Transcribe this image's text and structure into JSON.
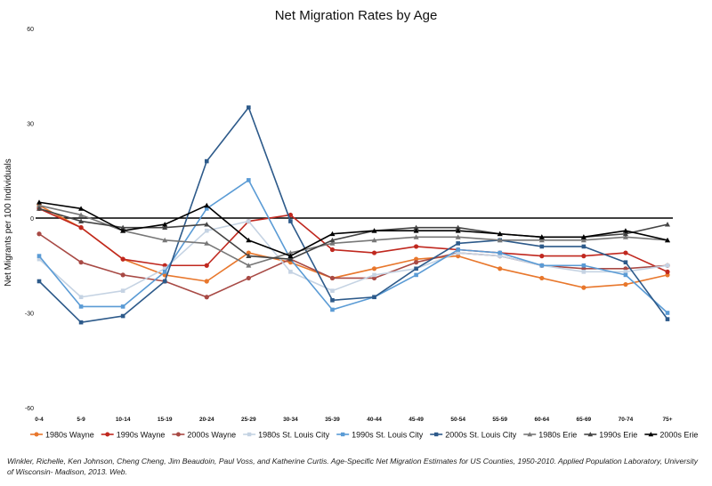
{
  "chart_data": {
    "type": "line",
    "title": "Net Migration Rates by Age",
    "xlabel": "",
    "ylabel": "Net Migrants per 100 Individuals",
    "ylim": [
      -60,
      60
    ],
    "yticks": [
      60,
      30,
      0,
      -30,
      -60
    ],
    "categories": [
      "0-4",
      "5-9",
      "10-14",
      "15-19",
      "20-24",
      "25-29",
      "30-34",
      "35-39",
      "40-44",
      "45-49",
      "50-54",
      "55-59",
      "60-64",
      "65-69",
      "70-74",
      "75+"
    ],
    "grid": false,
    "legend_position": "bottom",
    "series": [
      {
        "name": "1980s Wayne",
        "color": "#e8772c",
        "marker": "circle",
        "values": [
          4,
          -3,
          -13,
          -18,
          -20,
          -11,
          -14,
          -19,
          -16,
          -13,
          -12,
          -16,
          -19,
          -22,
          -21,
          -18
        ]
      },
      {
        "name": "1990s Wayne",
        "color": "#c0281f",
        "marker": "circle",
        "values": [
          3,
          -3,
          -13,
          -15,
          -15,
          -1,
          1,
          -10,
          -11,
          -9,
          -10,
          -11,
          -12,
          -12,
          -11,
          -17
        ]
      },
      {
        "name": "2000s Wayne",
        "color": "#a84a45",
        "marker": "circle",
        "values": [
          -5,
          -14,
          -18,
          -20,
          -25,
          -19,
          -13,
          -19,
          -19,
          -14,
          -11,
          -12,
          -15,
          -16,
          -16,
          -15
        ]
      },
      {
        "name": "1980s St. Louis City",
        "color": "#c5d3e3",
        "marker": "square",
        "values": [
          -13,
          -25,
          -23,
          -16,
          -4,
          -1,
          -17,
          -23,
          -18,
          -16,
          -11,
          -12,
          -15,
          -17,
          -17,
          -15
        ]
      },
      {
        "name": "1990s St. Louis City",
        "color": "#5a9bd5",
        "marker": "square",
        "values": [
          -12,
          -28,
          -28,
          -17,
          3,
          12,
          -13,
          -29,
          -25,
          -18,
          -10,
          -11,
          -15,
          -15,
          -18,
          -30
        ]
      },
      {
        "name": "2000s St. Louis City",
        "color": "#2d5a8a",
        "marker": "square",
        "values": [
          -20,
          -33,
          -31,
          -20,
          18,
          35,
          -1,
          -26,
          -25,
          -16,
          -8,
          -7,
          -9,
          -9,
          -14,
          -32
        ]
      },
      {
        "name": "1980s Erie",
        "color": "#777777",
        "marker": "triangle",
        "values": [
          4,
          1,
          -4,
          -7,
          -8,
          -15,
          -11,
          -8,
          -7,
          -6,
          -6,
          -7,
          -7,
          -7,
          -6,
          -7
        ]
      },
      {
        "name": "1990s Erie",
        "color": "#444444",
        "marker": "triangle",
        "values": [
          3,
          -1,
          -3,
          -3,
          -2,
          -12,
          -13,
          -7,
          -4,
          -3,
          -3,
          -5,
          -6,
          -6,
          -5,
          -2
        ]
      },
      {
        "name": "2000s Erie",
        "color": "#000000",
        "marker": "triangle",
        "values": [
          5,
          3,
          -4,
          -2,
          4,
          -7,
          -12,
          -5,
          -4,
          -4,
          -4,
          -5,
          -6,
          -6,
          -4,
          -7
        ]
      }
    ]
  },
  "caption": "Winkler, Richelle, Ken Johnson, Cheng Cheng, Jim Beaudoin, Paul Voss, and Katherine Curtis. Age-Specific Net Migration Estimates for US Counties, 1950-2010. Applied Population Laboratory, University of Wisconsin- Madison, 2013. Web."
}
